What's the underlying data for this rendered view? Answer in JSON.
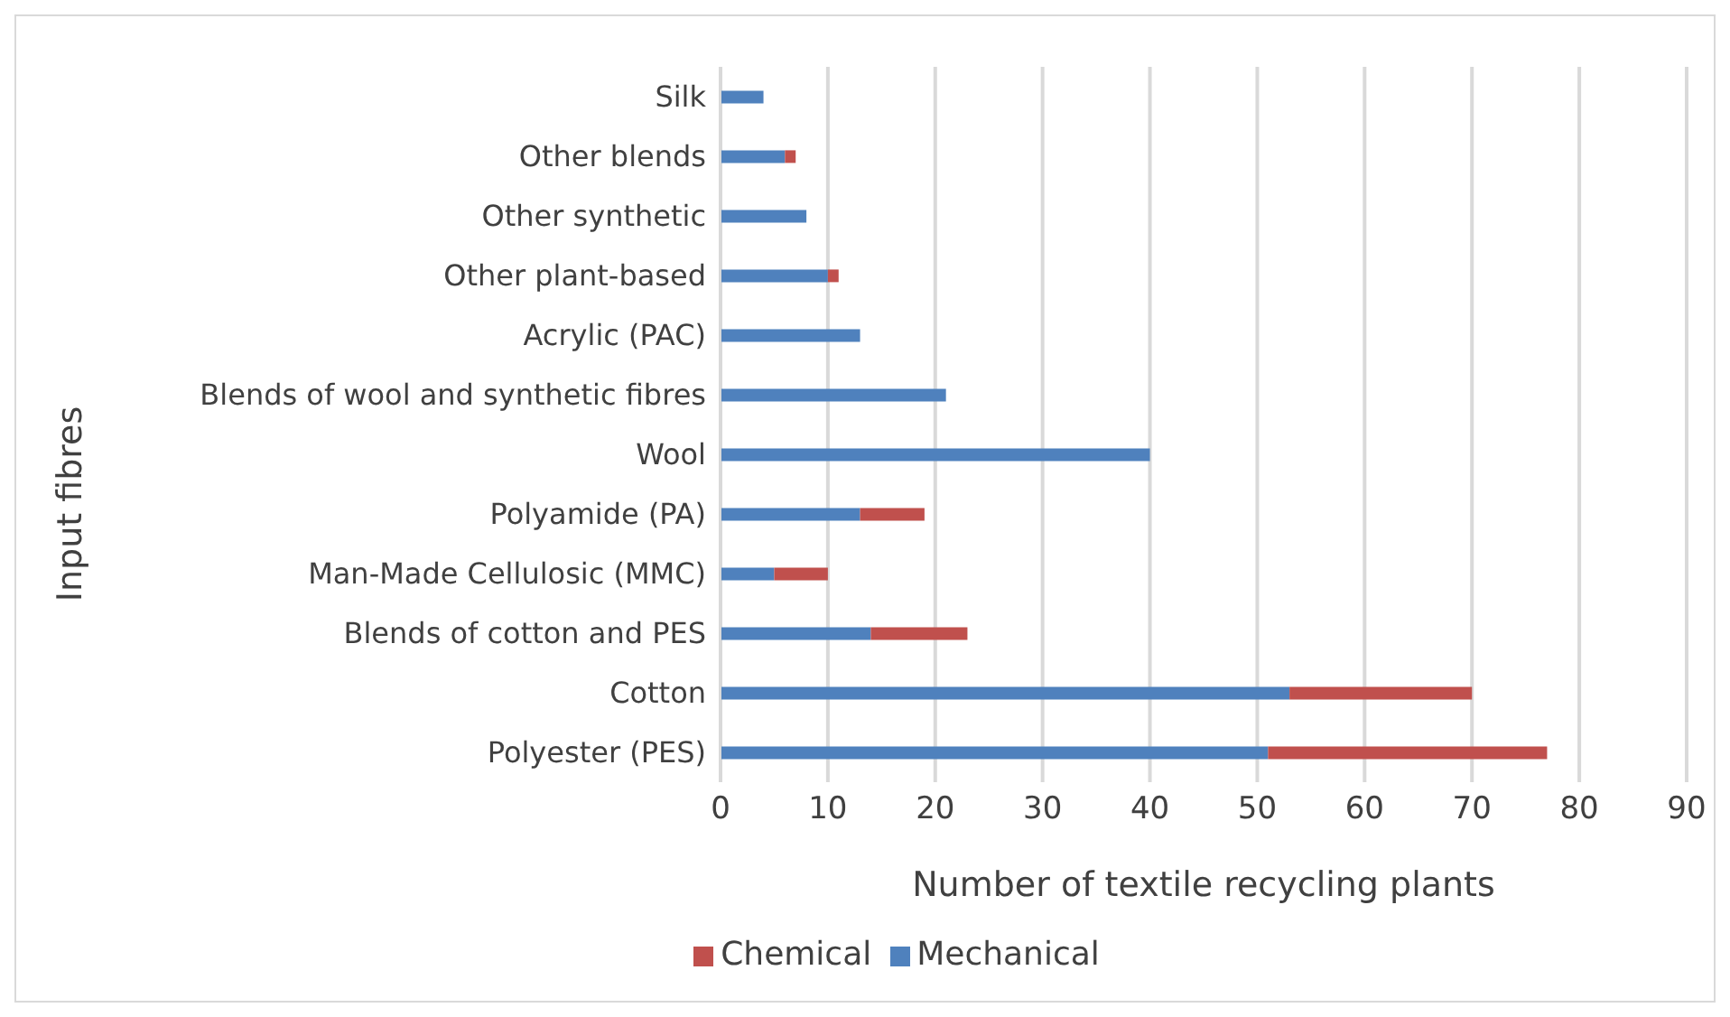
{
  "chart_data": {
    "type": "bar",
    "orientation": "horizontal",
    "stacked": true,
    "xlabel": "Number of textile recycling plants",
    "ylabel": "Input fibres",
    "categories": [
      "Silk",
      "Other blends",
      "Other synthetic",
      "Other plant-based",
      "Acrylic (PAC)",
      "Blends of wool and synthetic fibres",
      "Wool",
      "Polyamide (PA)",
      "Man-Made Cellulosic (MMC)",
      "Blends of cotton and PES",
      "Cotton",
      "Polyester (PES)"
    ],
    "series": [
      {
        "name": "Mechanical",
        "color": "#4f81bd",
        "values": [
          4,
          6,
          8,
          10,
          13,
          21,
          40,
          13,
          5,
          14,
          53,
          51
        ]
      },
      {
        "name": "Chemical",
        "color": "#c0504d",
        "values": [
          0,
          1,
          0,
          1,
          0,
          0,
          0,
          6,
          5,
          9,
          17,
          26
        ]
      }
    ],
    "xlim": [
      0,
      90
    ],
    "xticks": [
      0,
      10,
      20,
      30,
      40,
      50,
      60,
      70,
      80,
      90
    ],
    "grid": "x",
    "legend": "bottom"
  }
}
